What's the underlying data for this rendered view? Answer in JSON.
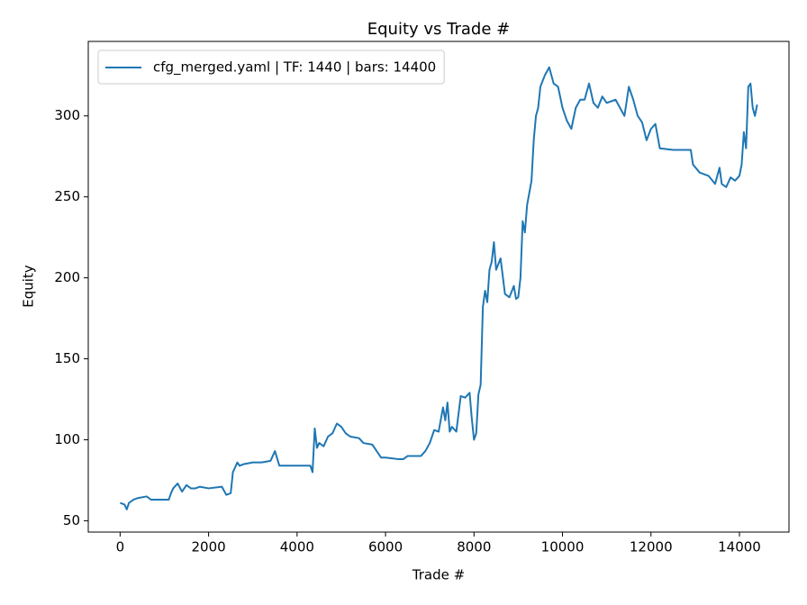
{
  "chart_data": {
    "type": "line",
    "title": "Equity vs Trade #",
    "x_label": "Trade #",
    "y_label": "Equity",
    "legend": "upper left",
    "grid": false,
    "xlim": [
      -720,
      15120
    ],
    "ylim": [
      43,
      346
    ],
    "xticks": [
      0,
      2000,
      4000,
      6000,
      8000,
      10000,
      12000,
      14000
    ],
    "yticks": [
      50,
      100,
      150,
      200,
      250,
      300
    ],
    "x": [
      0,
      100,
      150,
      200,
      300,
      400,
      600,
      700,
      1000,
      1100,
      1150,
      1200,
      1300,
      1400,
      1500,
      1600,
      1700,
      1800,
      2000,
      2300,
      2400,
      2500,
      2550,
      2650,
      2700,
      2800,
      3000,
      3200,
      3400,
      3500,
      3600,
      4000,
      4300,
      4350,
      4400,
      4450,
      4500,
      4600,
      4700,
      4800,
      4900,
      5000,
      5100,
      5200,
      5400,
      5500,
      5700,
      5900,
      6000,
      6300,
      6400,
      6500,
      6800,
      6900,
      7000,
      7100,
      7200,
      7300,
      7350,
      7400,
      7450,
      7500,
      7600,
      7700,
      7800,
      7900,
      7950,
      8000,
      8050,
      8100,
      8150,
      8200,
      8250,
      8300,
      8350,
      8400,
      8450,
      8500,
      8600,
      8700,
      8800,
      8900,
      8950,
      9000,
      9050,
      9100,
      9150,
      9200,
      9300,
      9350,
      9400,
      9450,
      9500,
      9600,
      9700,
      9800,
      9900,
      10000,
      10100,
      10200,
      10300,
      10400,
      10500,
      10600,
      10700,
      10800,
      10900,
      11000,
      11200,
      11400,
      11500,
      11600,
      11700,
      11800,
      11900,
      12000,
      12100,
      12200,
      12500,
      12900,
      12950,
      13100,
      13300,
      13450,
      13550,
      13600,
      13700,
      13800,
      13900,
      14000,
      14050,
      14100,
      14150,
      14200,
      14250,
      14300,
      14350,
      14400
    ],
    "series": [
      {
        "name": "cfg_merged.yaml | TF: 1440 | bars: 14400",
        "color": "#1f77b4",
        "values": [
          61,
          60,
          57,
          61,
          63,
          64,
          65,
          63,
          63,
          63,
          67,
          70,
          73,
          68,
          72,
          70,
          70,
          71,
          70,
          71,
          66,
          67,
          80,
          86,
          84,
          85,
          86,
          86,
          87,
          93,
          84,
          84,
          84,
          80,
          107,
          95,
          98,
          96,
          102,
          104,
          110,
          108,
          104,
          102,
          101,
          98,
          97,
          89,
          89,
          88,
          88,
          90,
          90,
          93,
          98,
          106,
          105,
          120,
          112,
          123,
          105,
          108,
          105,
          127,
          126,
          129,
          113,
          100,
          104,
          128,
          134,
          182,
          192,
          185,
          205,
          210,
          222,
          205,
          212,
          190,
          188,
          195,
          187,
          188,
          200,
          235,
          228,
          245,
          260,
          285,
          300,
          305,
          318,
          325,
          330,
          320,
          318,
          305,
          297,
          292,
          305,
          310,
          310,
          320,
          308,
          305,
          312,
          308,
          310,
          300,
          318,
          310,
          300,
          296,
          285,
          292,
          295,
          280,
          279,
          279,
          270,
          265,
          263,
          258,
          268,
          258,
          256,
          262,
          260,
          263,
          270,
          290,
          280,
          318,
          320,
          305,
          300,
          307
        ]
      }
    ]
  }
}
